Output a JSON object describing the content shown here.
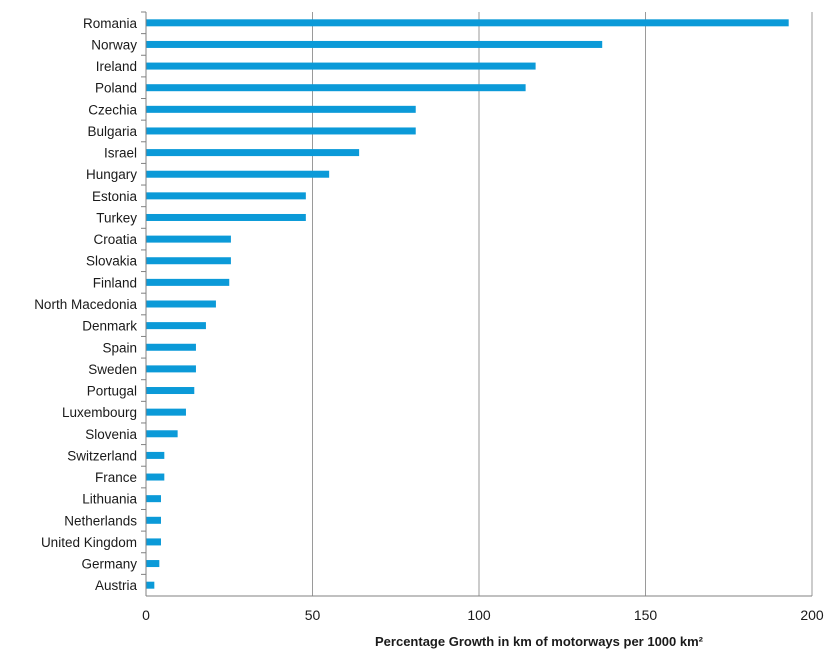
{
  "chart_data": {
    "type": "bar",
    "orientation": "horizontal",
    "categories": [
      "Romania",
      "Norway",
      "Ireland",
      "Poland",
      "Czechia",
      "Bulgaria",
      "Israel",
      "Hungary",
      "Estonia",
      "Turkey",
      "Croatia",
      "Slovakia",
      "Finland",
      "North Macedonia",
      "Denmark",
      "Spain",
      "Sweden",
      "Portugal",
      "Luxembourg",
      "Slovenia",
      "Switzerland",
      "France",
      "Lithuania",
      "Netherlands",
      "United Kingdom",
      "Germany",
      "Austria"
    ],
    "values": [
      193,
      137,
      117,
      114,
      81,
      81,
      64,
      55,
      48,
      48,
      25.5,
      25.5,
      25,
      21,
      18,
      15,
      15,
      14.5,
      12,
      9.5,
      5.5,
      5.5,
      4.5,
      4.5,
      4.5,
      4,
      2.5
    ],
    "xlabel": "Percentage  Growth  in km of motorways per 1000 km²",
    "ylabel": "",
    "xlim": [
      0,
      200
    ],
    "xticks": [
      0,
      50,
      100,
      150,
      200
    ],
    "grid": true,
    "color": "#0b9ad8"
  }
}
